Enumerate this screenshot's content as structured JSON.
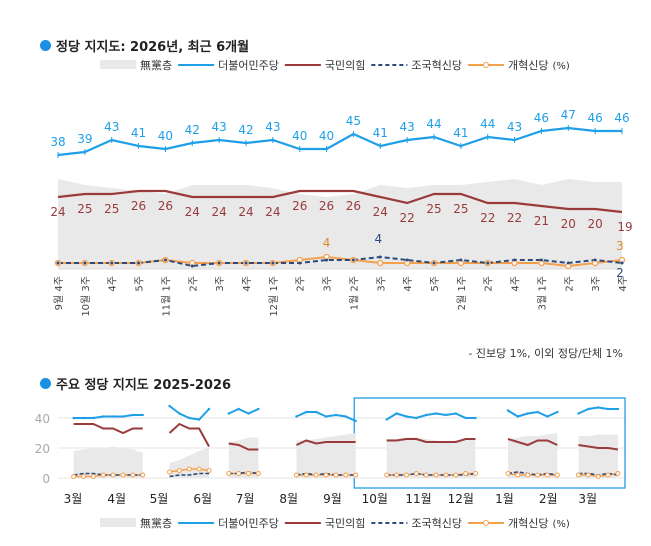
{
  "colors": {
    "none": "#e9e9e9",
    "dem": "#1e9fe8",
    "ppp": "#9a3b3b",
    "rebuild": "#2c4a7e",
    "reform": "#f4a04c",
    "accent": "#1a8fe3"
  },
  "legend": {
    "none": "無黨층",
    "dem": "더불어민주당",
    "ppp": "국민의힘",
    "rebuild": "조국혁신당",
    "reform": "개혁신당",
    "unit": "(%)"
  },
  "chart_data": [
    {
      "type": "line",
      "title": "정당 지지도: 2026년, 최근 6개월",
      "categories": [
        "9월 4주",
        "10월 3주",
        "4주",
        "5주",
        "11월 1주",
        "2주",
        "3주",
        "4주",
        "12월 1주",
        "2주",
        "3주",
        "1월 2주",
        "3주",
        "4주",
        "5주",
        "2월 1주",
        "2주",
        "4주",
        "3월 1주",
        "2주",
        "3주",
        "4주"
      ],
      "series": [
        {
          "name": "無黨층",
          "type": "area",
          "values": [
            30,
            28,
            27,
            26,
            25,
            28,
            28,
            28,
            27,
            25,
            24,
            25,
            28,
            27,
            28,
            28,
            29,
            30,
            28,
            30,
            29,
            29
          ]
        },
        {
          "name": "더불어민주당",
          "values": [
            38,
            39,
            43,
            41,
            40,
            42,
            43,
            42,
            43,
            40,
            40,
            45,
            41,
            43,
            44,
            41,
            44,
            43,
            46,
            47,
            46,
            46
          ],
          "labels": "all"
        },
        {
          "name": "국민의힘",
          "values": [
            24,
            25,
            25,
            26,
            26,
            24,
            24,
            24,
            24,
            26,
            26,
            26,
            24,
            22,
            25,
            25,
            22,
            22,
            21,
            20,
            20,
            19
          ],
          "labels": "all"
        },
        {
          "name": "조국혁신당",
          "values": [
            2,
            2,
            2,
            2,
            3,
            1,
            2,
            2,
            2,
            2,
            3,
            3,
            4,
            3,
            2,
            3,
            2,
            3,
            3,
            2,
            3,
            2
          ],
          "labeled_points": [
            {
              "index": 12,
              "text": "4"
            },
            {
              "index": 21,
              "text": "2"
            }
          ]
        },
        {
          "name": "개혁신당",
          "values": [
            2,
            2,
            2,
            2,
            3,
            2,
            2,
            2,
            2,
            3,
            4,
            3,
            2,
            2,
            2,
            2,
            2,
            2,
            2,
            1,
            2,
            3
          ],
          "labeled_points": [
            {
              "index": 10,
              "text": "4"
            },
            {
              "index": 21,
              "text": "3"
            }
          ]
        }
      ],
      "note": "- 진보당 1%, 이외 정당/단체 1%"
    },
    {
      "type": "line",
      "title": "주요 정당 지지도 2025-2026",
      "yticks": [
        0,
        20,
        40
      ],
      "ylim": [
        0,
        50
      ],
      "xticks": [
        {
          "label": "3월",
          "date": "2025-03-01"
        },
        {
          "label": "4월",
          "date": "2025-04-01"
        },
        {
          "label": "5월",
          "date": "2025-05-01"
        },
        {
          "label": "6월",
          "date": "2025-06-01"
        },
        {
          "label": "7월",
          "date": "2025-07-01"
        },
        {
          "label": "8월",
          "date": "2025-08-01"
        },
        {
          "label": "9월",
          "date": "2025-09-01"
        },
        {
          "label": "10월",
          "date": "2025-10-01"
        },
        {
          "label": "11월",
          "date": "2025-11-01"
        },
        {
          "label": "12월",
          "date": "2025-12-01"
        },
        {
          "label": "1월",
          "date": "2026-01-01"
        },
        {
          "label": "2월",
          "date": "2026-02-01"
        },
        {
          "label": "3월",
          "date": "2026-03-01"
        }
      ],
      "highlight_range": [
        "2025-09-20",
        "2026-03-31"
      ],
      "segments": [
        {
          "start": "2025-03-05",
          "none": [
            18,
            19,
            20,
            20,
            21,
            20,
            19,
            17
          ],
          "dem": [
            40,
            40,
            40,
            41,
            41,
            41,
            42,
            42
          ],
          "ppp": [
            36,
            36,
            36,
            33,
            33,
            30,
            33,
            33
          ],
          "rebuild": [
            2,
            3,
            3,
            2,
            2,
            2,
            2,
            2
          ],
          "reform": [
            1,
            1,
            1,
            2,
            2,
            2,
            2,
            2
          ]
        },
        {
          "start": "2025-05-12",
          "none": [
            10,
            12,
            15,
            18,
            20
          ],
          "dem": [
            48,
            43,
            40,
            39,
            46
          ],
          "ppp": [
            30,
            36,
            33,
            33,
            21
          ],
          "rebuild": [
            1,
            2,
            2,
            3,
            3
          ],
          "reform": [
            4,
            5,
            6,
            6,
            5
          ]
        },
        {
          "start": "2025-06-23",
          "none": [
            24,
            25,
            27,
            27
          ],
          "dem": [
            43,
            46,
            43,
            46
          ],
          "ppp": [
            23,
            22,
            19,
            19
          ],
          "rebuild": [
            3,
            3,
            4,
            3
          ],
          "reform": [
            3,
            3,
            3,
            3
          ]
        },
        {
          "start": "2025-08-10",
          "none": [
            25,
            25,
            26,
            27,
            28,
            29,
            30
          ],
          "dem": [
            41,
            44,
            44,
            41,
            42,
            41,
            38
          ],
          "ppp": [
            22,
            25,
            23,
            24,
            24,
            24,
            24
          ],
          "rebuild": [
            2,
            3,
            2,
            3,
            2,
            2,
            2
          ],
          "reform": [
            2,
            2,
            2,
            2,
            2,
            2,
            2
          ]
        },
        {
          "start": "2025-10-13",
          "none": [
            26,
            26,
            27,
            27,
            26,
            25,
            24,
            25,
            25,
            26
          ],
          "dem": [
            39,
            43,
            41,
            40,
            42,
            43,
            42,
            43,
            40,
            40
          ],
          "ppp": [
            25,
            25,
            26,
            26,
            24,
            24,
            24,
            24,
            26,
            26
          ],
          "rebuild": [
            2,
            2,
            2,
            3,
            2,
            2,
            2,
            2,
            2,
            3
          ],
          "reform": [
            2,
            2,
            2,
            3,
            2,
            2,
            2,
            2,
            3,
            3
          ]
        },
        {
          "start": "2026-01-07",
          "none": [
            25,
            27,
            28,
            28,
            29,
            30
          ],
          "dem": [
            45,
            41,
            43,
            44,
            41,
            44
          ],
          "ppp": [
            26,
            24,
            22,
            25,
            25,
            22
          ],
          "rebuild": [
            3,
            4,
            3,
            2,
            3,
            2
          ],
          "reform": [
            3,
            2,
            2,
            2,
            2,
            2
          ]
        },
        {
          "start": "2026-02-26",
          "none": [
            28,
            28,
            29,
            29,
            29
          ],
          "dem": [
            43,
            46,
            47,
            46,
            46
          ],
          "ppp": [
            22,
            21,
            20,
            20,
            19
          ],
          "rebuild": [
            3,
            3,
            2,
            3,
            2
          ],
          "reform": [
            2,
            2,
            1,
            2,
            3
          ]
        }
      ]
    }
  ]
}
